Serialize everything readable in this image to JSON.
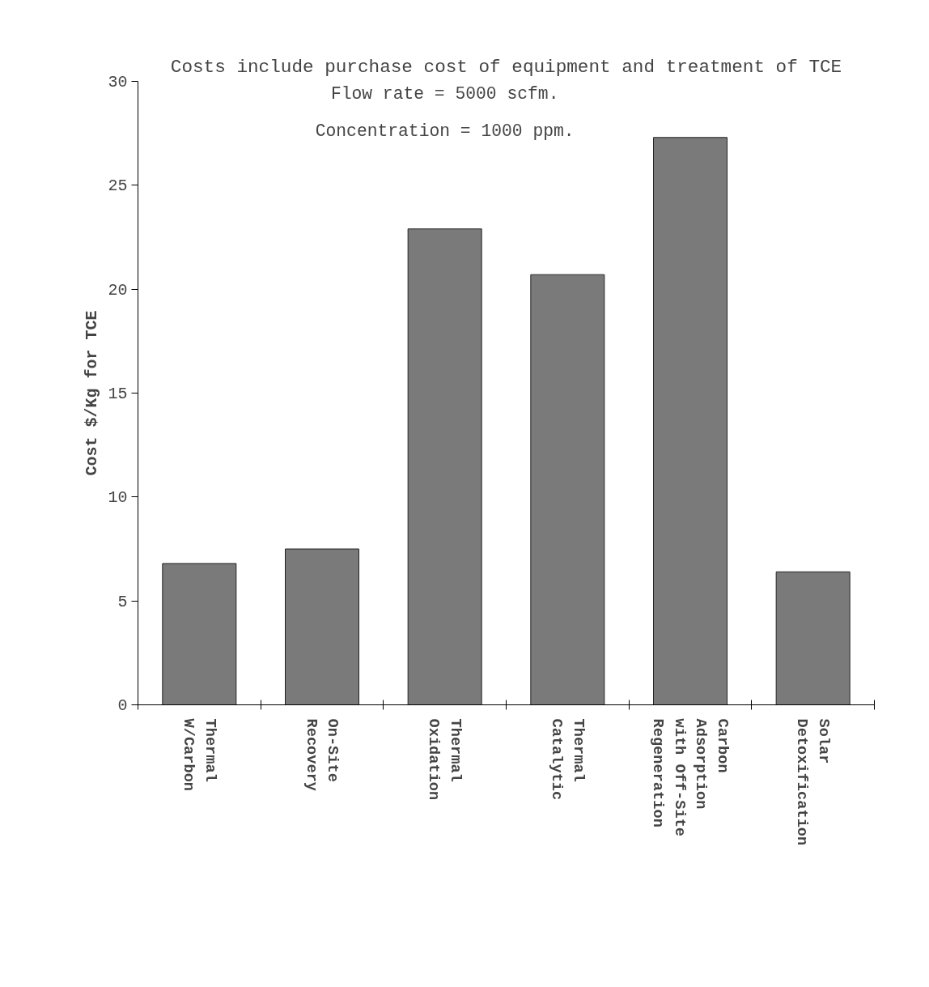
{
  "chart_data": {
    "type": "bar",
    "title": "Costs include purchase cost of equipment and treatment of TCE",
    "ylabel": "Cost $/Kg for TCE",
    "categories": [
      "Thermal\nW/Carbon",
      "On-Site\nRecovery",
      "Thermal\nOxidation",
      "Thermal\nCatalytic",
      "Carbon\nAdsorption\nwith Off-Site\nRegeneration",
      "Solar\nDetoxification"
    ],
    "values": [
      6.8,
      7.5,
      22.9,
      20.7,
      27.3,
      6.4
    ],
    "color": "#7a7a7a",
    "ylim": [
      0,
      30
    ],
    "yticks": [
      0,
      5,
      10,
      15,
      20,
      25,
      30
    ],
    "grid": false,
    "annotations": [
      "Flow rate = 5000 scfm.",
      "Concentration = 1000 ppm."
    ]
  }
}
